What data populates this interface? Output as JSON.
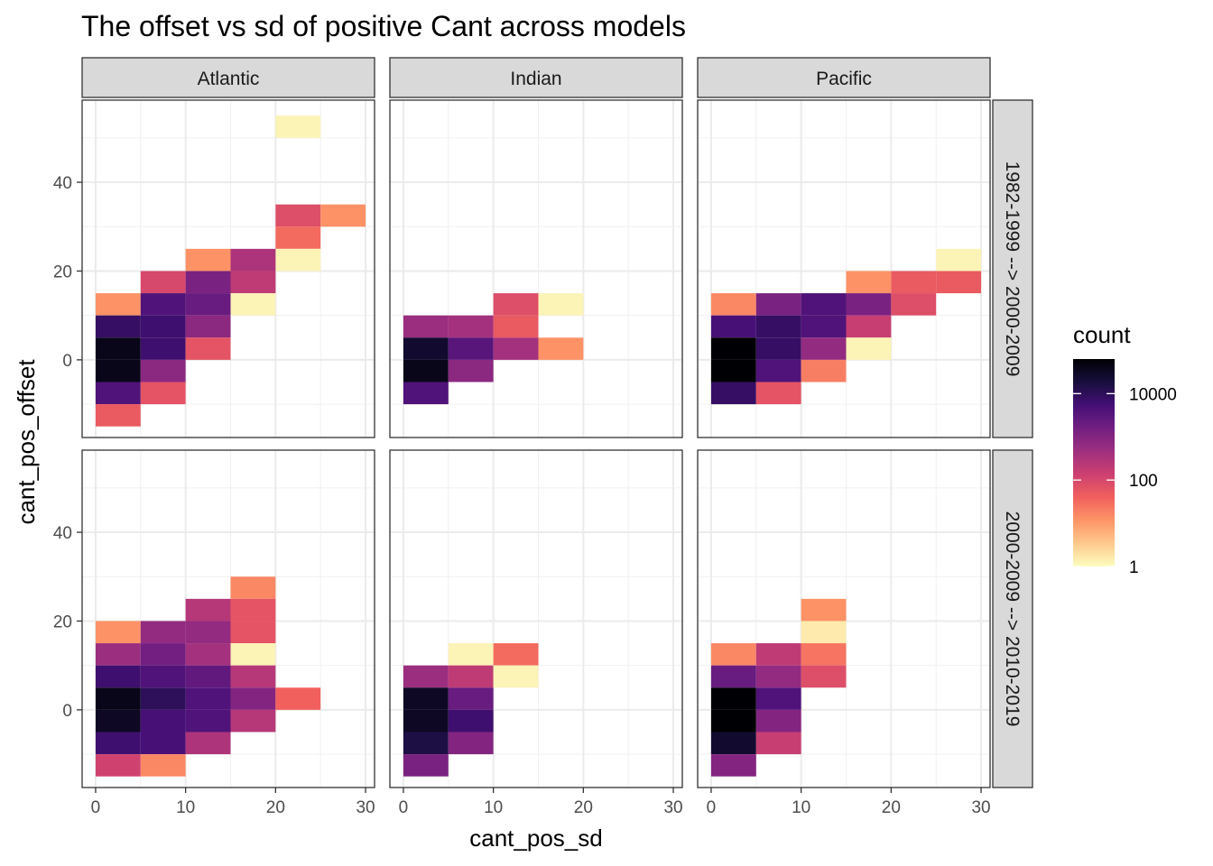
{
  "chart_data": {
    "type": "heatmap",
    "title": "The offset vs sd of positive Cant across models",
    "xlabel": "cant_pos_sd",
    "ylabel": "cant_pos_offset",
    "xlim": [
      -1.5,
      31
    ],
    "ylim": [
      -17.5,
      58.5
    ],
    "x_ticks": [
      0,
      10,
      20,
      30
    ],
    "y_ticks": [
      0,
      20,
      40
    ],
    "bin_width": 5,
    "col_facets": [
      "Atlantic",
      "Indian",
      "Pacific"
    ],
    "row_facets": [
      "1982-1999 --> 2000-2009",
      "2000-2009 --> 2010-2019"
    ],
    "legend": {
      "title": "count",
      "position": "right",
      "scale": "log10",
      "labels": [
        "10000",
        "100",
        "1"
      ],
      "label_values": [
        4,
        2,
        0
      ],
      "range": [
        0,
        4.8
      ],
      "palette": [
        "#FCFDBF",
        "#FEC98D",
        "#FD9567",
        "#F1605D",
        "#CD4071",
        "#9E2F7F",
        "#721F81",
        "#440F76",
        "#180F3D",
        "#000004"
      ]
    },
    "panels": [
      {
        "facet_col": "Atlantic",
        "facet_row": "1982-1999 --> 2000-2009",
        "cells": [
          {
            "x": 22.5,
            "y": 52.5,
            "log_count": 0.1
          },
          {
            "x": 22.5,
            "y": 32.5,
            "log_count": 1.9
          },
          {
            "x": 27.5,
            "y": 32.5,
            "log_count": 1.1
          },
          {
            "x": 22.5,
            "y": 27.5,
            "log_count": 1.5
          },
          {
            "x": 22.5,
            "y": 22.5,
            "log_count": 0.1
          },
          {
            "x": 12.5,
            "y": 22.5,
            "log_count": 1.1
          },
          {
            "x": 17.5,
            "y": 22.5,
            "log_count": 2.5
          },
          {
            "x": 7.5,
            "y": 17.5,
            "log_count": 2.0
          },
          {
            "x": 12.5,
            "y": 17.5,
            "log_count": 3.1
          },
          {
            "x": 17.5,
            "y": 17.5,
            "log_count": 2.3
          },
          {
            "x": 2.5,
            "y": 12.5,
            "log_count": 1.1
          },
          {
            "x": 7.5,
            "y": 12.5,
            "log_count": 3.6
          },
          {
            "x": 12.5,
            "y": 12.5,
            "log_count": 3.3
          },
          {
            "x": 17.5,
            "y": 12.5,
            "log_count": 0.1
          },
          {
            "x": 2.5,
            "y": 7.5,
            "log_count": 3.9
          },
          {
            "x": 7.5,
            "y": 7.5,
            "log_count": 3.8
          },
          {
            "x": 12.5,
            "y": 7.5,
            "log_count": 2.9
          },
          {
            "x": 2.5,
            "y": 2.5,
            "log_count": 4.6
          },
          {
            "x": 7.5,
            "y": 2.5,
            "log_count": 3.8
          },
          {
            "x": 12.5,
            "y": 2.5,
            "log_count": 1.8
          },
          {
            "x": 2.5,
            "y": -2.5,
            "log_count": 4.6
          },
          {
            "x": 7.5,
            "y": -2.5,
            "log_count": 2.9
          },
          {
            "x": 2.5,
            "y": -7.5,
            "log_count": 3.6
          },
          {
            "x": 7.5,
            "y": -7.5,
            "log_count": 1.8
          },
          {
            "x": 2.5,
            "y": -12.5,
            "log_count": 1.7
          }
        ]
      },
      {
        "facet_col": "Indian",
        "facet_row": "1982-1999 --> 2000-2009",
        "cells": [
          {
            "x": 12.5,
            "y": 12.5,
            "log_count": 1.9
          },
          {
            "x": 17.5,
            "y": 12.5,
            "log_count": 0.1
          },
          {
            "x": 2.5,
            "y": 7.5,
            "log_count": 2.7
          },
          {
            "x": 7.5,
            "y": 7.5,
            "log_count": 2.6
          },
          {
            "x": 12.5,
            "y": 7.5,
            "log_count": 1.7
          },
          {
            "x": 2.5,
            "y": 2.5,
            "log_count": 4.4
          },
          {
            "x": 7.5,
            "y": 2.5,
            "log_count": 3.5
          },
          {
            "x": 12.5,
            "y": 2.5,
            "log_count": 2.6
          },
          {
            "x": 17.5,
            "y": 2.5,
            "log_count": 1.1
          },
          {
            "x": 2.5,
            "y": -2.5,
            "log_count": 4.6
          },
          {
            "x": 7.5,
            "y": -2.5,
            "log_count": 2.9
          },
          {
            "x": 2.5,
            "y": -7.5,
            "log_count": 3.6
          }
        ]
      },
      {
        "facet_col": "Pacific",
        "facet_row": "1982-1999 --> 2000-2009",
        "cells": [
          {
            "x": 27.5,
            "y": 22.5,
            "log_count": 0.1
          },
          {
            "x": 17.5,
            "y": 17.5,
            "log_count": 1.1
          },
          {
            "x": 22.5,
            "y": 17.5,
            "log_count": 1.7
          },
          {
            "x": 27.5,
            "y": 17.5,
            "log_count": 1.7
          },
          {
            "x": 2.5,
            "y": 12.5,
            "log_count": 1.2
          },
          {
            "x": 7.5,
            "y": 12.5,
            "log_count": 3.1
          },
          {
            "x": 12.5,
            "y": 12.5,
            "log_count": 3.6
          },
          {
            "x": 17.5,
            "y": 12.5,
            "log_count": 3.1
          },
          {
            "x": 22.5,
            "y": 12.5,
            "log_count": 1.9
          },
          {
            "x": 2.5,
            "y": 7.5,
            "log_count": 3.7
          },
          {
            "x": 7.5,
            "y": 7.5,
            "log_count": 3.9
          },
          {
            "x": 12.5,
            "y": 7.5,
            "log_count": 3.6
          },
          {
            "x": 17.5,
            "y": 7.5,
            "log_count": 2.2
          },
          {
            "x": 2.5,
            "y": 2.5,
            "log_count": 4.8
          },
          {
            "x": 7.5,
            "y": 2.5,
            "log_count": 3.9
          },
          {
            "x": 12.5,
            "y": 2.5,
            "log_count": 2.8
          },
          {
            "x": 17.5,
            "y": 2.5,
            "log_count": 0.1
          },
          {
            "x": 2.5,
            "y": -2.5,
            "log_count": 4.8
          },
          {
            "x": 7.5,
            "y": -2.5,
            "log_count": 3.6
          },
          {
            "x": 12.5,
            "y": -2.5,
            "log_count": 1.3
          },
          {
            "x": 2.5,
            "y": -7.5,
            "log_count": 3.9
          },
          {
            "x": 7.5,
            "y": -7.5,
            "log_count": 1.8
          }
        ]
      },
      {
        "facet_col": "Atlantic",
        "facet_row": "2000-2009 --> 2010-2019",
        "cells": [
          {
            "x": 17.5,
            "y": 27.5,
            "log_count": 1.2
          },
          {
            "x": 12.5,
            "y": 22.5,
            "log_count": 2.4
          },
          {
            "x": 17.5,
            "y": 22.5,
            "log_count": 1.8
          },
          {
            "x": 2.5,
            "y": 17.5,
            "log_count": 1.1
          },
          {
            "x": 7.5,
            "y": 17.5,
            "log_count": 2.8
          },
          {
            "x": 12.5,
            "y": 17.5,
            "log_count": 2.8
          },
          {
            "x": 17.5,
            "y": 17.5,
            "log_count": 1.8
          },
          {
            "x": 2.5,
            "y": 12.5,
            "log_count": 2.7
          },
          {
            "x": 7.5,
            "y": 12.5,
            "log_count": 3.2
          },
          {
            "x": 12.5,
            "y": 12.5,
            "log_count": 2.6
          },
          {
            "x": 17.5,
            "y": 12.5,
            "log_count": 0.1
          },
          {
            "x": 2.5,
            "y": 7.5,
            "log_count": 3.8
          },
          {
            "x": 7.5,
            "y": 7.5,
            "log_count": 3.6
          },
          {
            "x": 12.5,
            "y": 7.5,
            "log_count": 3.4
          },
          {
            "x": 17.5,
            "y": 7.5,
            "log_count": 2.4
          },
          {
            "x": 2.5,
            "y": 2.5,
            "log_count": 4.6
          },
          {
            "x": 7.5,
            "y": 2.5,
            "log_count": 4.0
          },
          {
            "x": 12.5,
            "y": 2.5,
            "log_count": 3.6
          },
          {
            "x": 17.5,
            "y": 2.5,
            "log_count": 3.0
          },
          {
            "x": 22.5,
            "y": 2.5,
            "log_count": 1.6
          },
          {
            "x": 2.5,
            "y": -2.5,
            "log_count": 4.5
          },
          {
            "x": 7.5,
            "y": -2.5,
            "log_count": 3.7
          },
          {
            "x": 12.5,
            "y": -2.5,
            "log_count": 3.6
          },
          {
            "x": 17.5,
            "y": -2.5,
            "log_count": 2.4
          },
          {
            "x": 2.5,
            "y": -7.5,
            "log_count": 3.8
          },
          {
            "x": 7.5,
            "y": -7.5,
            "log_count": 3.7
          },
          {
            "x": 12.5,
            "y": -7.5,
            "log_count": 2.5
          },
          {
            "x": 2.5,
            "y": -12.5,
            "log_count": 2.1
          },
          {
            "x": 7.5,
            "y": -12.5,
            "log_count": 1.2
          }
        ]
      },
      {
        "facet_col": "Indian",
        "facet_row": "2000-2009 --> 2010-2019",
        "cells": [
          {
            "x": 7.5,
            "y": 12.5,
            "log_count": 0.1
          },
          {
            "x": 12.5,
            "y": 12.5,
            "log_count": 1.5
          },
          {
            "x": 2.5,
            "y": 7.5,
            "log_count": 2.7
          },
          {
            "x": 7.5,
            "y": 7.5,
            "log_count": 2.3
          },
          {
            "x": 12.5,
            "y": 7.5,
            "log_count": 0.1
          },
          {
            "x": 2.5,
            "y": 2.5,
            "log_count": 4.5
          },
          {
            "x": 7.5,
            "y": 2.5,
            "log_count": 3.3
          },
          {
            "x": 2.5,
            "y": -2.5,
            "log_count": 4.5
          },
          {
            "x": 7.5,
            "y": -2.5,
            "log_count": 3.8
          },
          {
            "x": 2.5,
            "y": -7.5,
            "log_count": 4.2
          },
          {
            "x": 7.5,
            "y": -7.5,
            "log_count": 3.0
          },
          {
            "x": 2.5,
            "y": -12.5,
            "log_count": 3.1
          }
        ]
      },
      {
        "facet_col": "Pacific",
        "facet_row": "2000-2009 --> 2010-2019",
        "cells": [
          {
            "x": 12.5,
            "y": 22.5,
            "log_count": 1.1
          },
          {
            "x": 12.5,
            "y": 17.5,
            "log_count": 0.2
          },
          {
            "x": 2.5,
            "y": 12.5,
            "log_count": 1.2
          },
          {
            "x": 7.5,
            "y": 12.5,
            "log_count": 2.3
          },
          {
            "x": 12.5,
            "y": 12.5,
            "log_count": 1.4
          },
          {
            "x": 2.5,
            "y": 7.5,
            "log_count": 3.3
          },
          {
            "x": 7.5,
            "y": 7.5,
            "log_count": 2.8
          },
          {
            "x": 12.5,
            "y": 7.5,
            "log_count": 1.9
          },
          {
            "x": 2.5,
            "y": 2.5,
            "log_count": 4.8
          },
          {
            "x": 7.5,
            "y": 2.5,
            "log_count": 3.6
          },
          {
            "x": 2.5,
            "y": -2.5,
            "log_count": 4.8
          },
          {
            "x": 7.5,
            "y": -2.5,
            "log_count": 3.0
          },
          {
            "x": 2.5,
            "y": -7.5,
            "log_count": 4.4
          },
          {
            "x": 7.5,
            "y": -7.5,
            "log_count": 2.2
          },
          {
            "x": 2.5,
            "y": -12.5,
            "log_count": 3.0
          }
        ]
      }
    ]
  }
}
